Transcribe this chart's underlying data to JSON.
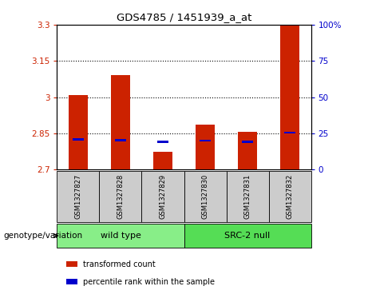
{
  "title": "GDS4785 / 1451939_a_at",
  "samples": [
    "GSM1327827",
    "GSM1327828",
    "GSM1327829",
    "GSM1327830",
    "GSM1327831",
    "GSM1327832"
  ],
  "red_values": [
    3.01,
    3.09,
    2.775,
    2.885,
    2.855,
    3.3
  ],
  "blue_values": [
    2.825,
    2.823,
    2.816,
    2.82,
    2.815,
    2.853
  ],
  "ylim_left": [
    2.7,
    3.3
  ],
  "ylim_right": [
    0,
    100
  ],
  "yticks_left": [
    2.7,
    2.85,
    3.0,
    3.15,
    3.3
  ],
  "yticks_right": [
    0,
    25,
    50,
    75,
    100
  ],
  "ytick_labels_left": [
    "2.7",
    "2.85",
    "3",
    "3.15",
    "3.3"
  ],
  "ytick_labels_right": [
    "0",
    "25",
    "50",
    "75",
    "100%"
  ],
  "hlines": [
    3.15,
    3.0,
    2.85
  ],
  "bar_bottom": 2.7,
  "bar_width": 0.45,
  "red_color": "#cc2200",
  "blue_color": "#0000cc",
  "group_configs": [
    {
      "indices": [
        0,
        1,
        2
      ],
      "label": "wild type",
      "color": "#88ee88"
    },
    {
      "indices": [
        3,
        4,
        5
      ],
      "label": "SRC-2 null",
      "color": "#55dd55"
    }
  ],
  "legend_items": [
    {
      "label": "transformed count",
      "color": "#cc2200"
    },
    {
      "label": "percentile rank within the sample",
      "color": "#0000cc"
    }
  ],
  "xlabel_area_label": "genotype/variation",
  "sample_box_color": "#cccccc",
  "fig_bg": "#ffffff"
}
